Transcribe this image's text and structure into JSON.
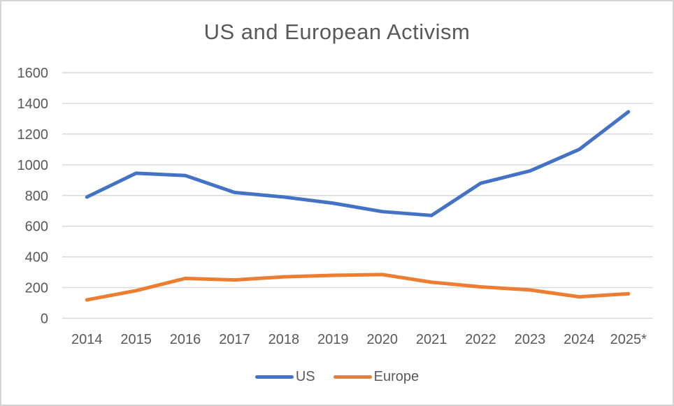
{
  "chart_data": {
    "type": "line",
    "title": "US and European Activism",
    "categories": [
      "2014",
      "2015",
      "2016",
      "2017",
      "2018",
      "2019",
      "2020",
      "2021",
      "2022",
      "2023",
      "2024",
      "2025*"
    ],
    "series": [
      {
        "name": "US",
        "color": "#4472C4",
        "values": [
          790,
          945,
          930,
          820,
          790,
          750,
          695,
          670,
          880,
          960,
          1100,
          1345
        ]
      },
      {
        "name": "Europe",
        "color": "#ED7D31",
        "values": [
          120,
          180,
          260,
          250,
          270,
          280,
          285,
          235,
          205,
          185,
          140,
          160
        ]
      }
    ],
    "ylim": [
      0,
      1600
    ],
    "ytick_step": 200,
    "xlabel": "",
    "ylabel": "",
    "grid": "horizontal",
    "gridline_color": "#D9D9D9",
    "text_color": "#595959",
    "legend_position": "bottom"
  }
}
